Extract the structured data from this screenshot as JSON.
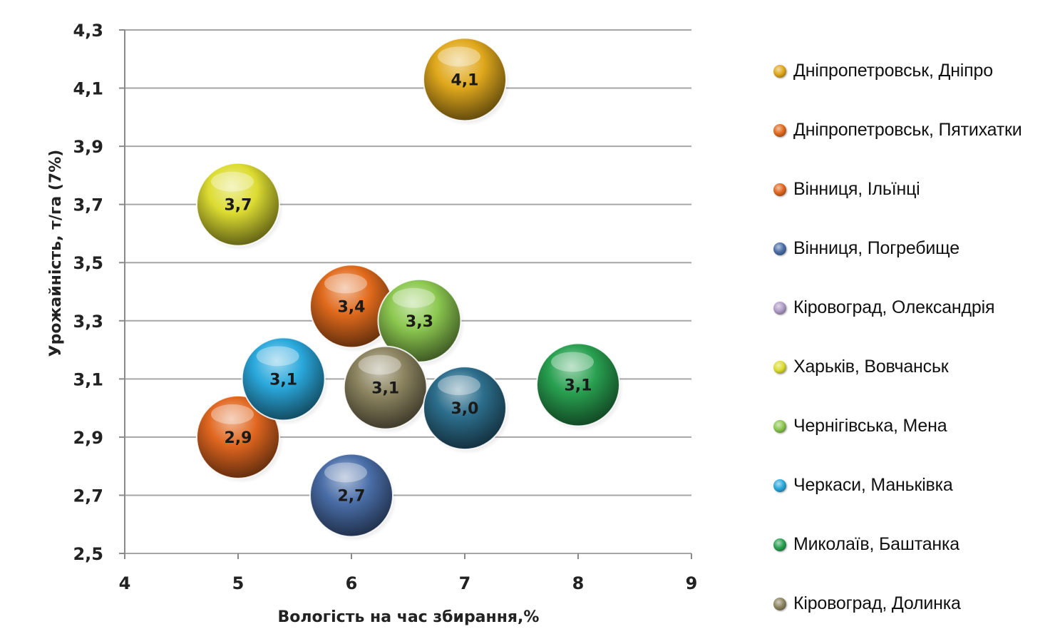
{
  "chart_data": {
    "type": "scatter",
    "xlabel": "Вологість на час збирання,%",
    "ylabel": "Урожайність, т/га (7%)",
    "xlim": [
      4,
      9
    ],
    "ylim": [
      2.5,
      4.3
    ],
    "x_ticks": [
      "4",
      "5",
      "6",
      "7",
      "8",
      "9"
    ],
    "y_ticks": [
      "2,5",
      "2,7",
      "2,9",
      "3,1",
      "3,3",
      "3,5",
      "3,7",
      "3,9",
      "4,1",
      "4,3"
    ],
    "grid": true,
    "legend_position": "right",
    "points": [
      {
        "series": "Дніпропетровськ, Дніпро",
        "x": 7.0,
        "y": 4.13,
        "label": "4,1",
        "color": "#e0a81c"
      },
      {
        "series": "Дніпропетровськ, Пятихатки",
        "x": 6.0,
        "y": 3.35,
        "label": "3,4",
        "color": "#e06a1c"
      },
      {
        "series": "Вінниця, Ільїнці",
        "x": 5.0,
        "y": 2.9,
        "label": "2,9",
        "color": "#e0661f"
      },
      {
        "series": "Вінниця, Погребище",
        "x": 6.0,
        "y": 2.7,
        "label": "2,7",
        "color": "#4a6ea8"
      },
      {
        "series": "Харьків, Вовчанськ",
        "x": 5.0,
        "y": 3.7,
        "label": "3,7",
        "color": "#dcdc32"
      },
      {
        "series": "Чернігівська, Мена",
        "x": 6.6,
        "y": 3.3,
        "label": "3,3",
        "color": "#8cc850"
      },
      {
        "series": "Черкаси, Маньківка",
        "x": 5.4,
        "y": 3.1,
        "label": "3,1",
        "color": "#2aa8dc"
      },
      {
        "series": "Миколаїв, Баштанка",
        "x": 8.0,
        "y": 3.08,
        "label": "3,1",
        "color": "#28a050"
      },
      {
        "series": "Кіровоград, Долинка",
        "x": 6.3,
        "y": 3.07,
        "label": "3,1",
        "color": "#8c8460"
      },
      {
        "series": "",
        "x": 7.0,
        "y": 3.0,
        "label": "3,0",
        "color": "#2c6e8c"
      }
    ],
    "legend": [
      {
        "name": "Дніпропетровськ, Дніпро",
        "color": "#e0a81c"
      },
      {
        "name": "Дніпропетровськ, Пятихатки",
        "color": "#e06a1c"
      },
      {
        "name": "Вінниця, Ільїнці",
        "color": "#e0661f"
      },
      {
        "name": "Вінниця, Погребище",
        "color": "#4a6ea8"
      },
      {
        "name": "Кіровоград, Олександрія",
        "color": "#b09cc8"
      },
      {
        "name": "Харьків, Вовчанськ",
        "color": "#dcdc32"
      },
      {
        "name": "Чернігівська, Мена",
        "color": "#8cc850"
      },
      {
        "name": "Черкаси, Маньківка",
        "color": "#2aa8dc"
      },
      {
        "name": "Миколаїв, Баштанка",
        "color": "#28a050"
      },
      {
        "name": "Кіровоград, Долинка",
        "color": "#8c8460"
      }
    ]
  }
}
